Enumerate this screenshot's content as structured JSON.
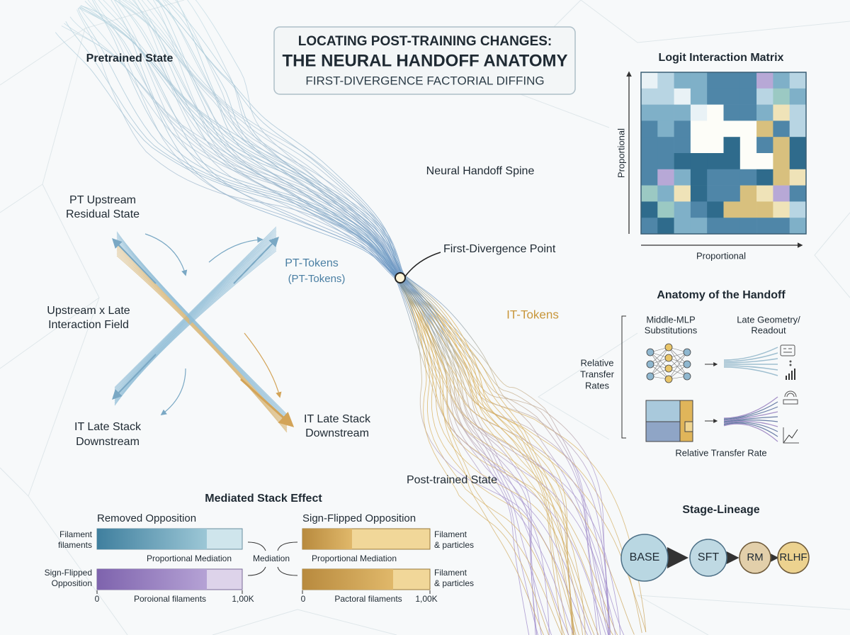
{
  "header": {
    "title_line1": "LOCATING POST-TRAINING CHANGES:",
    "title_line2": "THE NEURAL HANDOFF ANATOMY",
    "subtitle": "FIRST-DIVERGENCE FACTORIAL DIFFING"
  },
  "spine": {
    "pretrained": "Pretrained State",
    "spine_label": "Neural Handoff Spine",
    "divergence": "First-Divergence Point",
    "pt_tokens": "PT-Tokens",
    "pt_tokens_alt": "(PT-Tokens)",
    "it_tokens": "IT-Tokens",
    "post_trained": "Post-trained State"
  },
  "field": {
    "upstream": [
      "PT Upstream",
      "Residual State"
    ],
    "interaction": [
      "Upstream x Late",
      "Interaction Field"
    ],
    "it_left": [
      "IT Late Stack",
      "Downstream"
    ],
    "it_right": [
      "IT Late Stack",
      "Downstream"
    ]
  },
  "matrix": {
    "title": "Logit Interaction Matrix",
    "y_label": "Proportional",
    "x_label": "Proportional"
  },
  "anatomy": {
    "title": "Anatomy of the Handoff",
    "col1": [
      "Middle-MLP",
      "Substitutions"
    ],
    "col2": [
      "Late Geometry/",
      "Readout"
    ],
    "side": [
      "Relative",
      "Transfer",
      "Rates"
    ],
    "footer": "Relative Transfer Rate"
  },
  "lineage": {
    "title": "Stage-Lineage",
    "stages": [
      "BASE",
      "SFT",
      "RM",
      "RLHF"
    ]
  },
  "mediated": {
    "title": "Mediated Stack Effect",
    "center": "Mediation",
    "left": {
      "heading": "Removed Opposition",
      "row1": [
        "Filament",
        "filaments"
      ],
      "row2": [
        "Sign-Flipped",
        "Opposition"
      ],
      "caption": "Proportional Mediation",
      "axis": [
        "0",
        "Poroional filaments",
        "1,00K"
      ]
    },
    "right": {
      "heading": "Sign-Flipped Opposition",
      "row1": [
        "Filament",
        "& particles"
      ],
      "row2": [
        "Filament",
        "& particles"
      ],
      "caption": "Proportional Mediation",
      "axis": [
        "0",
        "Pactoral filaments",
        "1,00K"
      ]
    }
  }
}
